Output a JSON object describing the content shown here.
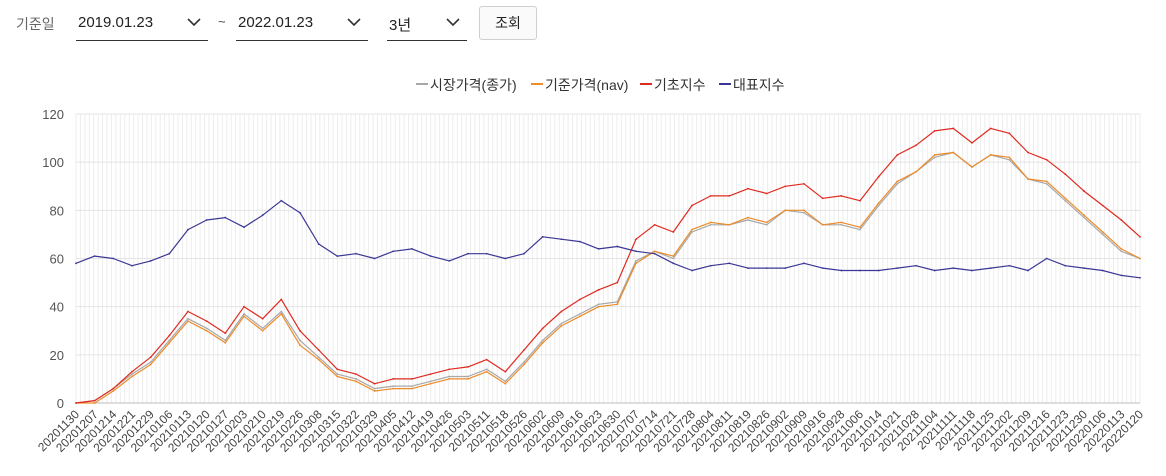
{
  "toolbar": {
    "label": "기준일",
    "start_date": "2019.01.23",
    "tilde": "~",
    "end_date": "2022.01.23",
    "period": "3년",
    "search_button": "조회",
    "chevron_icon": "chevron-down-icon"
  },
  "legend": [
    {
      "name": "시장가격(종가)",
      "color": "#a8a8a8"
    },
    {
      "name": "기준가격(nav)",
      "color": "#ec8b2a"
    },
    {
      "name": "기초지수",
      "color": "#e02a1f"
    },
    {
      "name": "대표지수",
      "color": "#3a3796"
    }
  ],
  "chart_data": {
    "type": "line",
    "xlabel": "",
    "ylabel": "",
    "ylim": [
      0,
      120
    ],
    "yticks": [
      0,
      20,
      40,
      60,
      80,
      100,
      120
    ],
    "grid": true,
    "legend_position": "top-center",
    "x_tick_labels": [
      "20201130",
      "20201207",
      "20201214",
      "20201221",
      "20201229",
      "20210106",
      "20210113",
      "20210120",
      "20210127",
      "20210203",
      "20210210",
      "20210219",
      "20210226",
      "20210308",
      "20210315",
      "20210322",
      "20210329",
      "20210405",
      "20210412",
      "20210419",
      "20210426",
      "20210503",
      "20210511",
      "20210518",
      "20210526",
      "20210602",
      "20210609",
      "20210616",
      "20210623",
      "20210630",
      "20210707",
      "20210714",
      "20210721",
      "20210728",
      "20210804",
      "20210811",
      "20210819",
      "20210826",
      "20210902",
      "20210909",
      "20210916",
      "20210928",
      "20211006",
      "20211014",
      "20211021",
      "20211028",
      "20211104",
      "20211111",
      "20211118",
      "20211125",
      "20211202",
      "20211209",
      "20211216",
      "20211223",
      "20211230",
      "20220106",
      "20220113",
      "20220120"
    ],
    "series": [
      {
        "name": "시장가격(종가)",
        "color": "#a8a8a8",
        "values": [
          0,
          1,
          6,
          12,
          17,
          26,
          35,
          31,
          26,
          37,
          31,
          38,
          26,
          19,
          12,
          10,
          6,
          7,
          7,
          9,
          11,
          11,
          14,
          9,
          17,
          26,
          33,
          37,
          41,
          42,
          59,
          63,
          60,
          71,
          74,
          74,
          76,
          74,
          80,
          79,
          74,
          74,
          72,
          82,
          91,
          96,
          102,
          104,
          98,
          103,
          101,
          93,
          91,
          84,
          77,
          70,
          63,
          60
        ]
      },
      {
        "name": "기준가격(nav)",
        "color": "#ec8b2a",
        "values": [
          0,
          0,
          5,
          11,
          16,
          25,
          34,
          30,
          25,
          36,
          30,
          37,
          24,
          18,
          11,
          9,
          5,
          6,
          6,
          8,
          10,
          10,
          13,
          8,
          16,
          25,
          32,
          36,
          40,
          41,
          58,
          63,
          61,
          72,
          75,
          74,
          77,
          75,
          80,
          80,
          74,
          75,
          73,
          83,
          92,
          96,
          103,
          104,
          98,
          103,
          102,
          93,
          92,
          85,
          78,
          71,
          64,
          60
        ]
      },
      {
        "name": "기초지수",
        "color": "#e02a1f",
        "values": [
          0,
          1,
          6,
          13,
          19,
          28,
          38,
          34,
          29,
          40,
          35,
          43,
          30,
          22,
          14,
          12,
          8,
          10,
          10,
          12,
          14,
          15,
          18,
          13,
          22,
          31,
          38,
          43,
          47,
          50,
          68,
          74,
          71,
          82,
          86,
          86,
          89,
          87,
          90,
          91,
          85,
          86,
          84,
          94,
          103,
          107,
          113,
          114,
          108,
          114,
          112,
          104,
          101,
          95,
          88,
          82,
          76,
          69
        ]
      },
      {
        "name": "대표지수",
        "color": "#3a3796",
        "values": [
          58,
          61,
          60,
          57,
          59,
          62,
          72,
          76,
          77,
          73,
          78,
          84,
          79,
          66,
          61,
          62,
          60,
          63,
          64,
          61,
          59,
          62,
          62,
          60,
          62,
          69,
          68,
          67,
          64,
          65,
          63,
          62,
          58,
          55,
          57,
          58,
          56,
          56,
          56,
          58,
          56,
          55,
          55,
          55,
          56,
          57,
          55,
          56,
          55,
          56,
          57,
          55,
          60,
          57,
          56,
          55,
          53,
          52
        ]
      }
    ]
  }
}
